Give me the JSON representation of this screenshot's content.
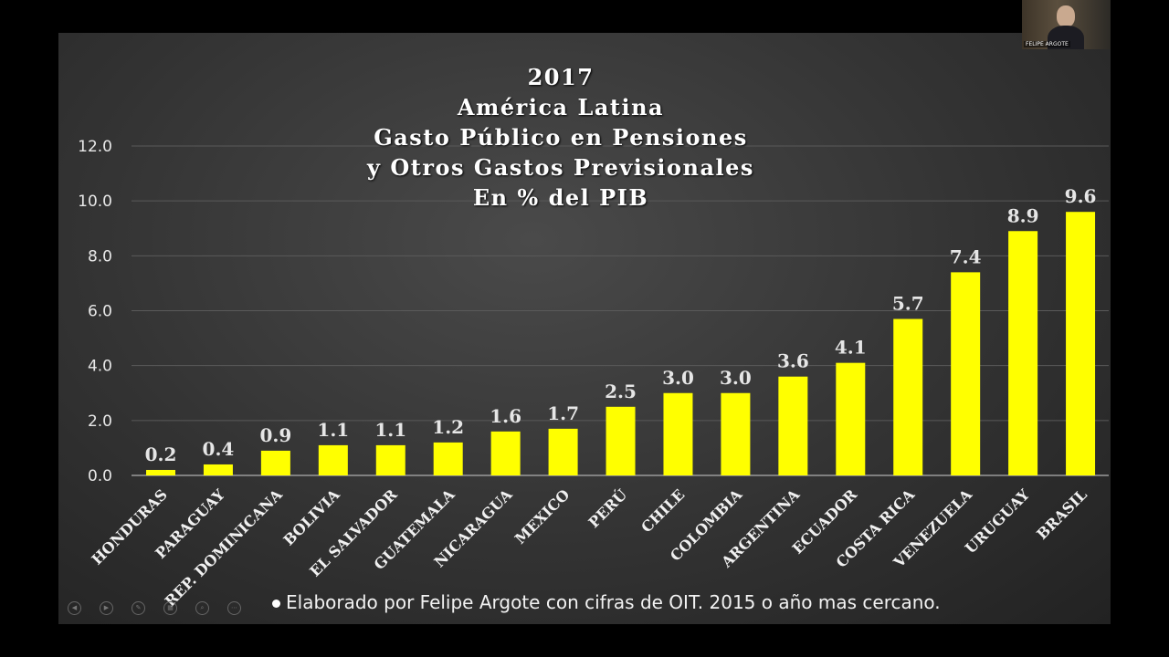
{
  "video_tile": {
    "name": "FELIPE ARGOTE"
  },
  "title_lines": [
    "2017",
    "América Latina",
    "Gasto Público en Pensiones",
    "y Otros Gastos Previsionales",
    "En % del PIB"
  ],
  "footer": "Elaborado por Felipe Argote con cifras de OIT. 2015 o año mas cercano.",
  "colors": {
    "bar": "#ffff00",
    "background": "#3a3a3a",
    "text": "#ffffff"
  },
  "chart_data": {
    "type": "bar",
    "title": "2017 América Latina Gasto Público en Pensiones y Otros Gastos Previsionales En % del PIB",
    "categories": [
      "HONDURAS",
      "PARAGUAY",
      "REP. DOMINICANA",
      "BOLIVIA",
      "EL SALVADOR",
      "GUATEMALA",
      "NICARAGUA",
      "MEXICO",
      "PERÚ",
      "CHILE",
      "COLOMBIA",
      "ARGENTINA",
      "ECUADOR",
      "COSTA RICA",
      "VENEZUELA",
      "URUGUAY",
      "BRASIL"
    ],
    "values": [
      0.2,
      0.4,
      0.9,
      1.1,
      1.1,
      1.2,
      1.6,
      1.7,
      2.5,
      3.0,
      3.0,
      3.6,
      4.1,
      5.7,
      7.4,
      8.9,
      9.6
    ],
    "value_labels": [
      "0.2",
      "0.4",
      "0.9",
      "1.1",
      "1.1",
      "1.2",
      "1.6",
      "1.7",
      "2.5",
      "3.0",
      "3.0",
      "3.6",
      "4.1",
      "5.7",
      "7.4",
      "8.9",
      "9.6"
    ],
    "ylim": [
      0,
      12
    ],
    "yticks": [
      "0.0",
      "2.0",
      "4.0",
      "6.0",
      "8.0",
      "10.0",
      "12.0"
    ],
    "grid": true,
    "xlabel": "",
    "ylabel": ""
  }
}
